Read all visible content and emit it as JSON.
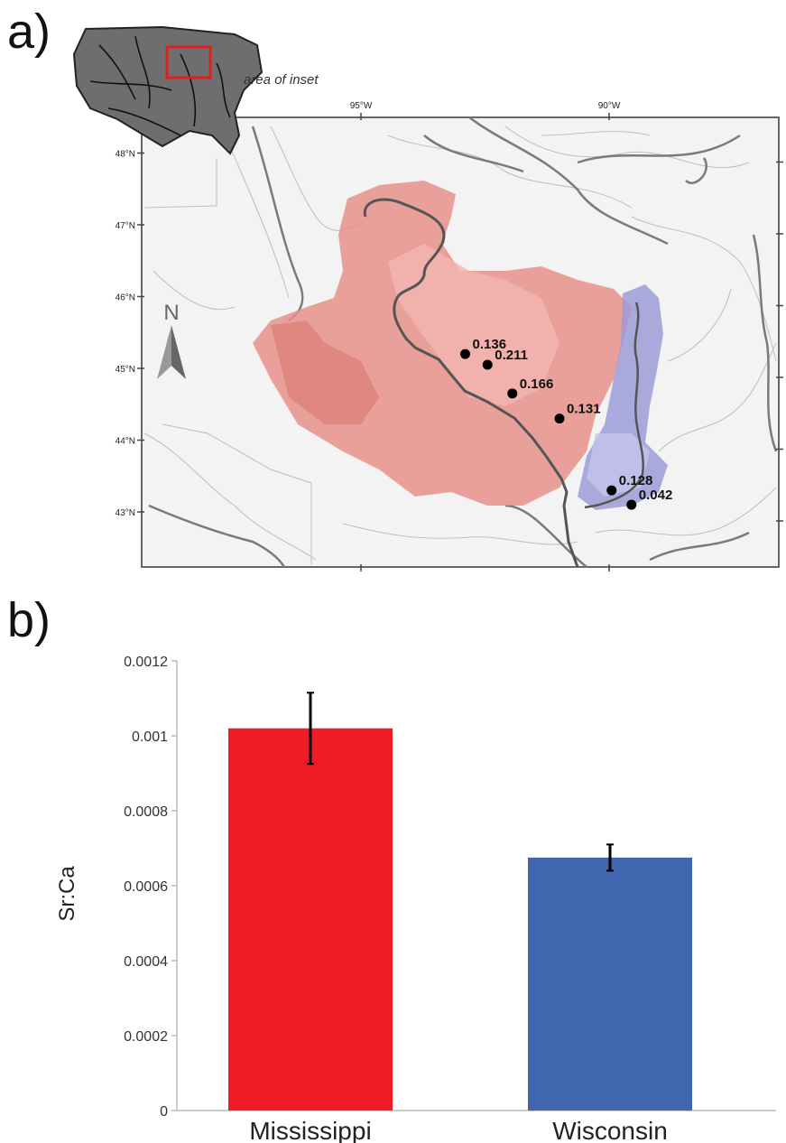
{
  "panels": {
    "a_label": "a)",
    "b_label": "b)"
  },
  "map": {
    "inset_caption": "area of inset",
    "longitude_labels": [
      {
        "text": "95°W",
        "lon": -95
      },
      {
        "text": "90°W",
        "lon": -90
      }
    ],
    "latitude_labels": [
      {
        "text": "48°N",
        "lat": 48
      },
      {
        "text": "47°N",
        "lat": 47
      },
      {
        "text": "46°N",
        "lat": 46
      },
      {
        "text": "45°N",
        "lat": 45
      },
      {
        "text": "44°N",
        "lat": 44
      },
      {
        "text": "43°N",
        "lat": 43
      }
    ],
    "north_label": "N",
    "sites": [
      {
        "value": "0.136",
        "lon": -92.9,
        "lat": 45.2
      },
      {
        "value": "0.211",
        "lon": -92.45,
        "lat": 45.05
      },
      {
        "value": "0.166",
        "lon": -91.95,
        "lat": 44.65
      },
      {
        "value": "0.131",
        "lon": -91.0,
        "lat": 44.3
      },
      {
        "value": "0.128",
        "lon": -89.95,
        "lat": 43.3
      },
      {
        "value": "0.042",
        "lon": -89.55,
        "lat": 43.1
      }
    ],
    "colors": {
      "mississippi_basin": "#e8918a",
      "wisconsin_basin": "#9b9bd6",
      "river": "#555555",
      "inset_box": "#e0201c"
    }
  },
  "chart_data": {
    "type": "bar",
    "categories": [
      "Mississippi",
      "Wisconsin"
    ],
    "values": [
      0.00102,
      0.000675
    ],
    "errors": [
      9.5e-05,
      3.5e-05
    ],
    "colors": [
      "#ee1c24",
      "#4066b0"
    ],
    "ylabel": "Sr:Ca",
    "ylim": [
      0,
      0.0012
    ],
    "yticks": [
      "0",
      "0.0002",
      "0.0004",
      "0.0006",
      "0.0008",
      "0.001",
      "0.0012"
    ]
  }
}
